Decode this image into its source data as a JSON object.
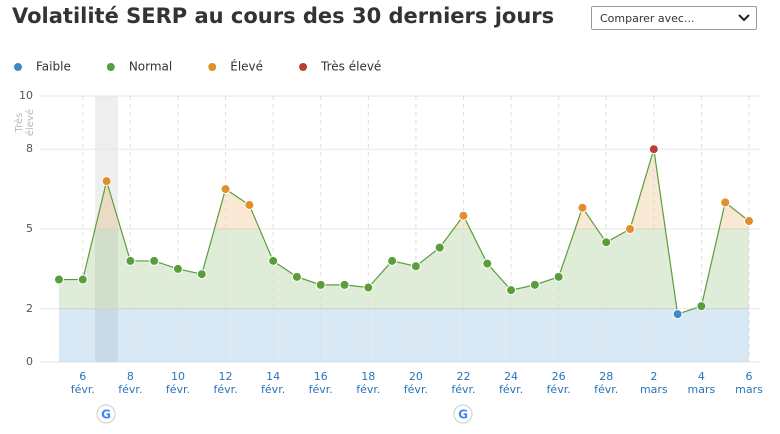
{
  "header": {
    "title": "Volatilité SERP au cours des 30 derniers jours",
    "dropdown": "Comparer avec..."
  },
  "chart_data": {
    "type": "line",
    "levels": [
      {
        "name": "Faible",
        "color": "#3c8ac7",
        "range": [
          0,
          2
        ]
      },
      {
        "name": "Normal",
        "color": "#5a9e3c",
        "range": [
          2,
          5
        ]
      },
      {
        "name": "Élevé",
        "color": "#e08f2a",
        "range": [
          5,
          8
        ]
      },
      {
        "name": "Très élevé",
        "color": "#b84035",
        "range": [
          8,
          10
        ]
      }
    ],
    "categories": [
      null,
      "6 févr.",
      null,
      "8 févr.",
      null,
      "10 févr.",
      null,
      "12 févr.",
      null,
      "14 févr.",
      null,
      "16 févr.",
      null,
      "18 févr.",
      null,
      "20 févr.",
      null,
      "22 févr.",
      null,
      "24 févr.",
      null,
      "26 févr.",
      null,
      "28 févr.",
      null,
      "2 mars",
      null,
      "4 mars",
      null,
      "6 mars"
    ],
    "values": [
      3.1,
      3.1,
      6.8,
      3.8,
      3.8,
      3.5,
      3.3,
      6.5,
      5.9,
      3.8,
      3.2,
      2.9,
      2.9,
      2.8,
      3.8,
      3.6,
      4.3,
      5.5,
      3.7,
      2.7,
      2.9,
      3.2,
      5.8,
      4.5,
      5.0,
      8.0,
      1.8,
      2.1,
      6.0,
      5.3
    ],
    "ylim": [
      0,
      10
    ],
    "yticks": [
      0,
      2,
      5,
      8,
      10
    ],
    "grid": true
  }
}
